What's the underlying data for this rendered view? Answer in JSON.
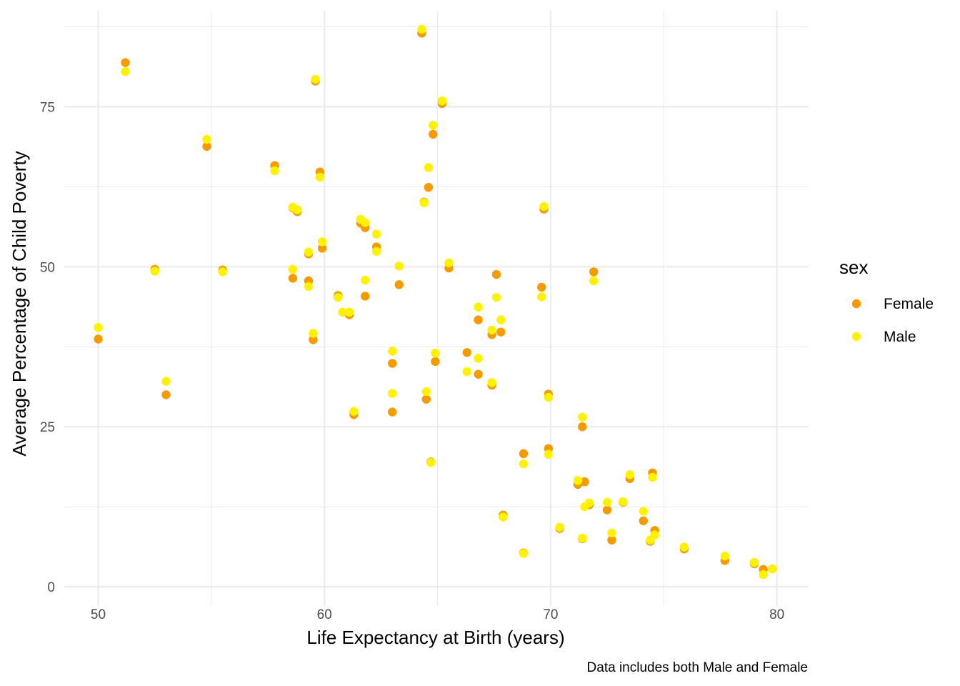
{
  "chart_data": {
    "type": "scatter",
    "xlabel": "Life Expectancy at Birth (years)",
    "ylabel": "Average Percentage of Child Poverty",
    "caption": "Data includes both Male and Female",
    "xlim": [
      48.5,
      81.4
    ],
    "ylim": [
      -3,
      90
    ],
    "x_ticks": [
      50,
      60,
      70,
      80
    ],
    "x_tick_labels": [
      "50",
      "60",
      "70",
      "80"
    ],
    "y_ticks": [
      0,
      25,
      50,
      75
    ],
    "y_tick_labels": [
      "0",
      "25",
      "50",
      "75"
    ],
    "grid": true,
    "legend": {
      "title": "sex",
      "position": "right",
      "entries": [
        "Female",
        "Male"
      ]
    },
    "series": [
      {
        "name": "Female",
        "color": "#F59B00",
        "points": [
          [
            50.0,
            38.7
          ],
          [
            51.2,
            81.9
          ],
          [
            52.5,
            49.6
          ],
          [
            53.0,
            30.0
          ],
          [
            54.8,
            68.8
          ],
          [
            55.5,
            49.5
          ],
          [
            57.8,
            65.8
          ],
          [
            58.6,
            48.2
          ],
          [
            58.6,
            59.2
          ],
          [
            58.8,
            58.6
          ],
          [
            59.3,
            47.8
          ],
          [
            59.3,
            52.0
          ],
          [
            59.5,
            38.6
          ],
          [
            59.6,
            79.0
          ],
          [
            59.8,
            64.8
          ],
          [
            59.9,
            52.9
          ],
          [
            60.6,
            45.5
          ],
          [
            61.1,
            42.5
          ],
          [
            61.3,
            26.9
          ],
          [
            61.6,
            56.8
          ],
          [
            61.8,
            56.1
          ],
          [
            61.8,
            45.4
          ],
          [
            62.3,
            53.1
          ],
          [
            63.0,
            27.3
          ],
          [
            63.0,
            34.9
          ],
          [
            63.3,
            47.2
          ],
          [
            64.3,
            86.5
          ],
          [
            64.4,
            60.1
          ],
          [
            64.5,
            29.3
          ],
          [
            64.6,
            62.4
          ],
          [
            64.7,
            19.5
          ],
          [
            64.8,
            70.7
          ],
          [
            64.9,
            35.2
          ],
          [
            65.2,
            75.5
          ],
          [
            65.5,
            49.8
          ],
          [
            66.3,
            36.6
          ],
          [
            66.8,
            41.7
          ],
          [
            66.8,
            33.2
          ],
          [
            67.4,
            39.4
          ],
          [
            67.4,
            31.5
          ],
          [
            67.6,
            48.8
          ],
          [
            67.8,
            39.8
          ],
          [
            67.9,
            11.2
          ],
          [
            68.8,
            20.8
          ],
          [
            68.8,
            5.3
          ],
          [
            69.6,
            46.8
          ],
          [
            69.7,
            59.0
          ],
          [
            69.9,
            21.6
          ],
          [
            69.9,
            30.1
          ],
          [
            70.4,
            9.1
          ],
          [
            71.2,
            16.0
          ],
          [
            71.4,
            25.0
          ],
          [
            71.4,
            7.5
          ],
          [
            71.5,
            16.4
          ],
          [
            71.7,
            12.8
          ],
          [
            71.9,
            49.2
          ],
          [
            72.5,
            12.0
          ],
          [
            72.7,
            7.3
          ],
          [
            73.2,
            13.2
          ],
          [
            73.5,
            16.9
          ],
          [
            74.1,
            10.3
          ],
          [
            74.4,
            7.1
          ],
          [
            74.5,
            17.8
          ],
          [
            74.6,
            8.8
          ],
          [
            75.9,
            5.9
          ],
          [
            77.7,
            4.1
          ],
          [
            79.0,
            3.6
          ],
          [
            79.4,
            2.7
          ],
          [
            79.8,
            2.8
          ]
        ]
      },
      {
        "name": "Male",
        "color": "#FFF200",
        "points": [
          [
            50.0,
            40.5
          ],
          [
            51.2,
            80.5
          ],
          [
            52.5,
            49.3
          ],
          [
            53.0,
            32.1
          ],
          [
            54.8,
            69.9
          ],
          [
            55.5,
            49.2
          ],
          [
            57.8,
            65.0
          ],
          [
            58.6,
            49.6
          ],
          [
            58.6,
            59.3
          ],
          [
            58.8,
            58.9
          ],
          [
            59.3,
            46.9
          ],
          [
            59.3,
            52.3
          ],
          [
            59.5,
            39.6
          ],
          [
            59.6,
            79.3
          ],
          [
            59.8,
            64.0
          ],
          [
            59.9,
            53.9
          ],
          [
            60.6,
            45.2
          ],
          [
            61.1,
            42.9
          ],
          [
            60.8,
            42.9
          ],
          [
            61.3,
            27.4
          ],
          [
            61.6,
            57.4
          ],
          [
            61.8,
            56.9
          ],
          [
            61.8,
            47.9
          ],
          [
            62.3,
            52.4
          ],
          [
            62.3,
            55.1
          ],
          [
            63.0,
            36.8
          ],
          [
            63.0,
            30.2
          ],
          [
            63.3,
            50.1
          ],
          [
            64.3,
            87.1
          ],
          [
            64.4,
            60.0
          ],
          [
            64.5,
            30.5
          ],
          [
            64.6,
            65.5
          ],
          [
            64.7,
            19.4
          ],
          [
            64.8,
            72.1
          ],
          [
            64.9,
            36.5
          ],
          [
            65.2,
            75.9
          ],
          [
            65.5,
            50.6
          ],
          [
            66.3,
            33.6
          ],
          [
            66.8,
            43.7
          ],
          [
            66.8,
            35.7
          ],
          [
            67.4,
            40.1
          ],
          [
            67.4,
            31.9
          ],
          [
            67.6,
            45.2
          ],
          [
            67.8,
            41.7
          ],
          [
            67.9,
            10.9
          ],
          [
            68.8,
            19.2
          ],
          [
            68.8,
            5.2
          ],
          [
            69.6,
            45.3
          ],
          [
            69.7,
            59.4
          ],
          [
            69.9,
            20.7
          ],
          [
            69.9,
            29.6
          ],
          [
            70.4,
            9.3
          ],
          [
            71.2,
            16.6
          ],
          [
            71.4,
            26.5
          ],
          [
            71.4,
            7.6
          ],
          [
            71.5,
            12.5
          ],
          [
            71.7,
            13.1
          ],
          [
            71.9,
            47.8
          ],
          [
            72.5,
            13.2
          ],
          [
            72.7,
            8.4
          ],
          [
            73.2,
            13.3
          ],
          [
            73.5,
            17.5
          ],
          [
            74.1,
            11.8
          ],
          [
            74.4,
            7.3
          ],
          [
            74.5,
            17.1
          ],
          [
            74.6,
            8.1
          ],
          [
            75.9,
            6.2
          ],
          [
            77.7,
            4.8
          ],
          [
            79.0,
            3.8
          ],
          [
            79.4,
            1.9
          ],
          [
            79.8,
            2.8
          ]
        ]
      }
    ]
  }
}
